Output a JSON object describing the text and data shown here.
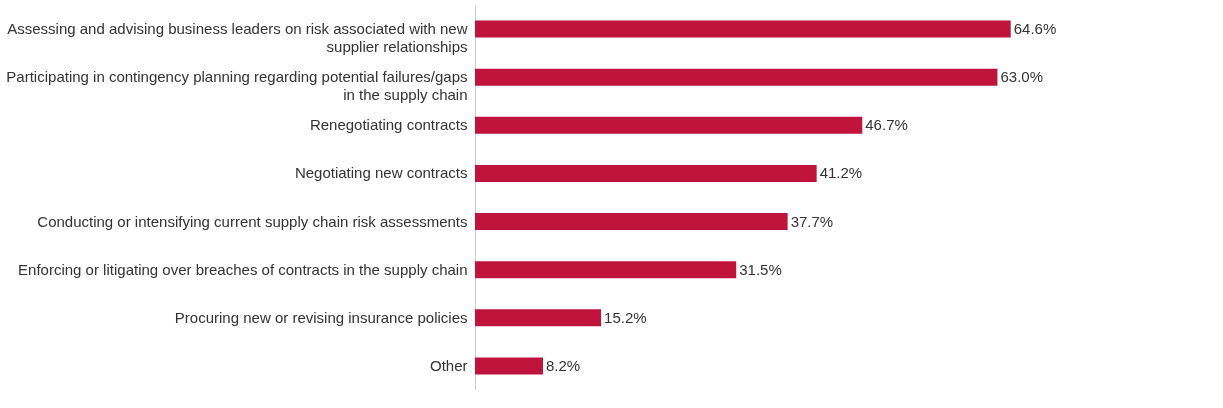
{
  "chart_data": {
    "type": "bar",
    "orientation": "horizontal",
    "color": "#c0143c",
    "categories": [
      "Assessing and advising business leaders on risk associated with new supplier relationships",
      "Participating in contingency planning regarding potential failures/gaps in the supply chain",
      "Renegotiating contracts",
      "Negotiating new contracts",
      "Conducting or intensifying current supply chain risk assessments",
      "Enforcing or litigating over breaches of contracts in the supply chain",
      "Procuring new or revising insurance policies",
      "Other"
    ],
    "values": [
      64.6,
      63.0,
      46.7,
      41.2,
      37.7,
      31.5,
      15.2,
      8.2
    ],
    "value_labels": [
      "64.6%",
      "63.0%",
      "46.7%",
      "41.2%",
      "37.7%",
      "31.5%",
      "15.2%",
      "8.2%"
    ]
  }
}
